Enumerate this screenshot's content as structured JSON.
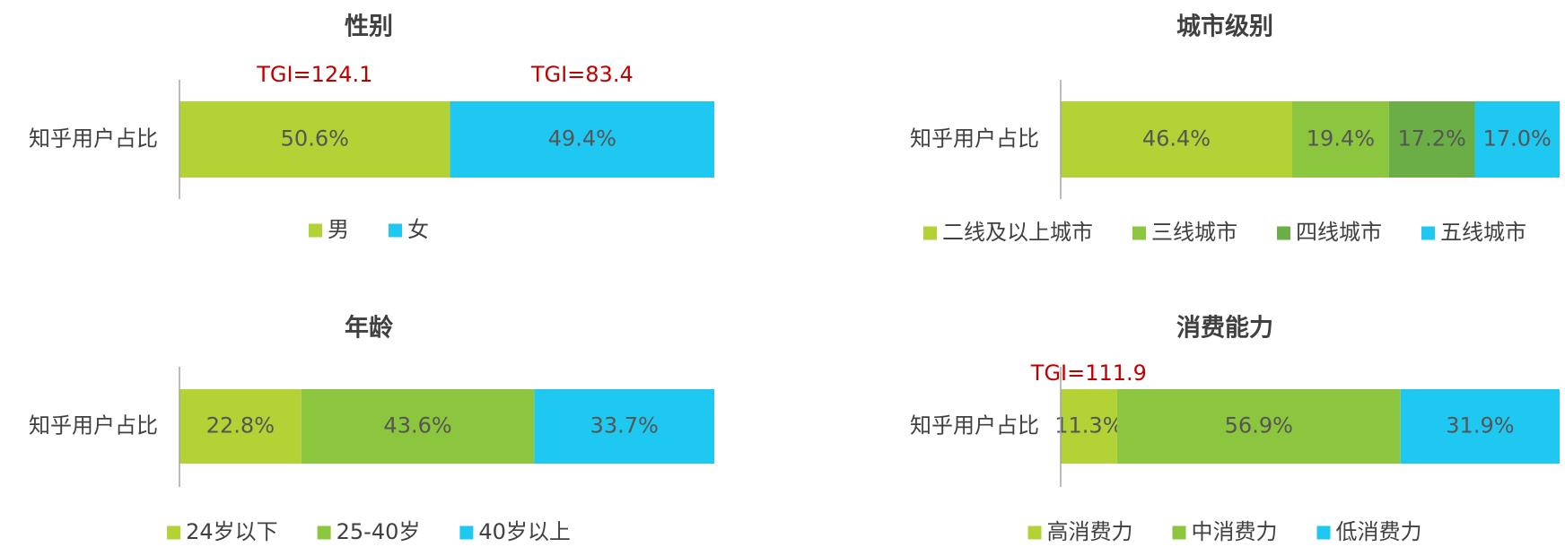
{
  "chart_data": [
    {
      "type": "bar",
      "orientation": "horizontal",
      "stacked": true,
      "title": "性别",
      "categories": [
        "知乎用户占比"
      ],
      "series": [
        {
          "name": "男",
          "color": "#b2d235",
          "values": [
            50.6
          ],
          "value_labels": [
            "50.6%"
          ],
          "annotation": "TGI=124.1"
        },
        {
          "name": "女",
          "color": "#1fc8f1",
          "values": [
            49.4
          ],
          "value_labels": [
            "49.4%"
          ],
          "annotation": "TGI=83.4"
        }
      ]
    },
    {
      "type": "bar",
      "orientation": "horizontal",
      "stacked": true,
      "title": "城市级别",
      "categories": [
        "知乎用户占比"
      ],
      "series": [
        {
          "name": "二线及以上城市",
          "color": "#b2d235",
          "values": [
            46.4
          ],
          "value_labels": [
            "46.4%"
          ]
        },
        {
          "name": "三线城市",
          "color": "#8cc63f",
          "values": [
            19.4
          ],
          "value_labels": [
            "19.4%"
          ]
        },
        {
          "name": "四线城市",
          "color": "#6aae45",
          "values": [
            17.2
          ],
          "value_labels": [
            "17.2%"
          ]
        },
        {
          "name": "五线城市",
          "color": "#1fc8f1",
          "values": [
            17.0
          ],
          "value_labels": [
            "17.0%"
          ]
        }
      ]
    },
    {
      "type": "bar",
      "orientation": "horizontal",
      "stacked": true,
      "title": "年龄",
      "categories": [
        "知乎用户占比"
      ],
      "series": [
        {
          "name": "24岁以下",
          "color": "#b2d235",
          "values": [
            22.8
          ],
          "value_labels": [
            "22.8%"
          ]
        },
        {
          "name": "25-40岁",
          "color": "#8cc63f",
          "values": [
            43.6
          ],
          "value_labels": [
            "43.6%"
          ]
        },
        {
          "name": "40岁以上",
          "color": "#1fc8f1",
          "values": [
            33.7
          ],
          "value_labels": [
            "33.7%"
          ]
        }
      ]
    },
    {
      "type": "bar",
      "orientation": "horizontal",
      "stacked": true,
      "title": "消费能力",
      "categories": [
        "知乎用户占比"
      ],
      "series": [
        {
          "name": "高消费力",
          "color": "#b2d235",
          "values": [
            11.3
          ],
          "value_labels": [
            "11.3%"
          ],
          "annotation": "TGI=111.9"
        },
        {
          "name": "中消费力",
          "color": "#8cc63f",
          "values": [
            56.9
          ],
          "value_labels": [
            "56.9%"
          ]
        },
        {
          "name": "低消费力",
          "color": "#1fc8f1",
          "values": [
            31.9
          ],
          "value_labels": [
            "31.9%"
          ]
        }
      ]
    }
  ]
}
